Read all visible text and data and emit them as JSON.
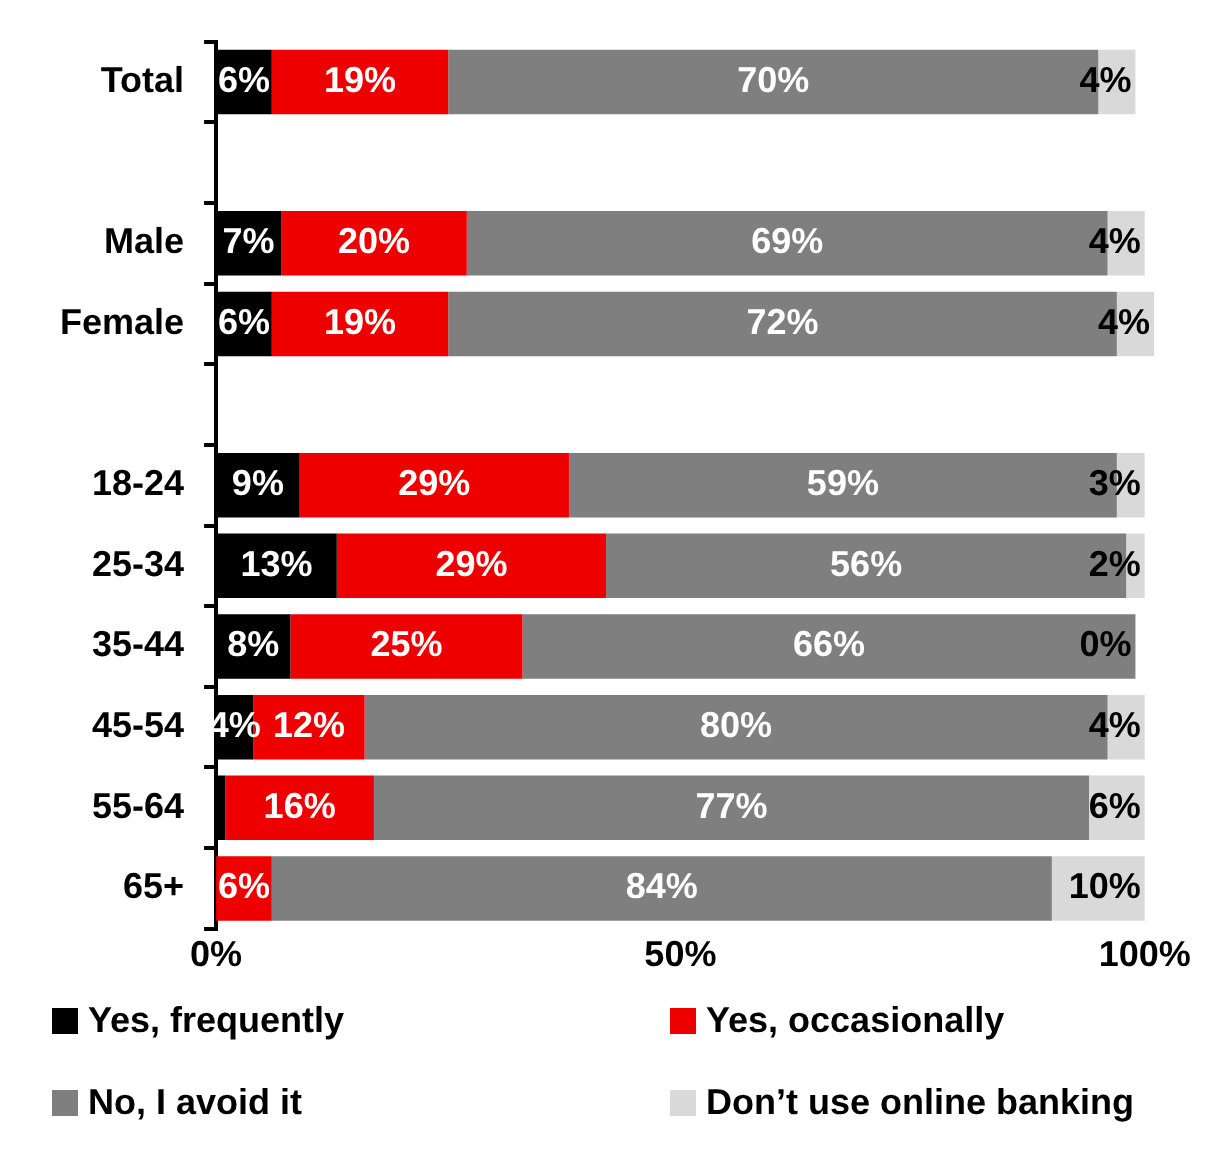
{
  "chart_data": {
    "type": "bar",
    "orientation": "horizontal",
    "stacked": true,
    "categories": [
      "Total",
      null,
      "Male",
      "Female",
      null,
      "18-24",
      "25-34",
      "35-44",
      "45-54",
      "55-64",
      "65+"
    ],
    "series": [
      {
        "name": "Yes, frequently",
        "color": "#000000",
        "values": [
          6,
          null,
          7,
          6,
          null,
          9,
          13,
          8,
          4,
          1,
          0
        ],
        "value_labels": [
          "6%",
          null,
          "7%",
          "6%",
          null,
          "9%",
          "13%",
          "8%",
          "4%",
          null,
          null
        ]
      },
      {
        "name": "Yes, occasionally",
        "color": "#ee0000",
        "values": [
          19,
          null,
          20,
          19,
          null,
          29,
          29,
          25,
          12,
          16,
          6
        ],
        "value_labels": [
          "19%",
          null,
          "20%",
          "19%",
          null,
          "29%",
          "29%",
          "25%",
          "12%",
          "16%",
          "6%"
        ]
      },
      {
        "name": "No, I avoid it",
        "color": "#7f7f7f",
        "values": [
          70,
          null,
          69,
          72,
          null,
          59,
          56,
          66,
          80,
          77,
          84
        ],
        "value_labels": [
          "70%",
          null,
          "69%",
          "72%",
          null,
          "59%",
          "56%",
          "66%",
          "80%",
          "77%",
          "84%"
        ]
      },
      {
        "name": "Don’t use online banking",
        "color": "#d9d9d9",
        "values": [
          4,
          null,
          4,
          4,
          null,
          3,
          2,
          0,
          4,
          6,
          10
        ],
        "value_labels": [
          "4%",
          null,
          "4%",
          "4%",
          null,
          "3%",
          "2%",
          "0%",
          "4%",
          "6%",
          "10%"
        ]
      }
    ],
    "xlim": [
      0,
      101
    ],
    "xticks": [
      {
        "value": 0,
        "label": "0%"
      },
      {
        "value": 50,
        "label": "50%"
      },
      {
        "value": 100,
        "label": "100%"
      }
    ],
    "grid": false,
    "legend": "bottom"
  }
}
